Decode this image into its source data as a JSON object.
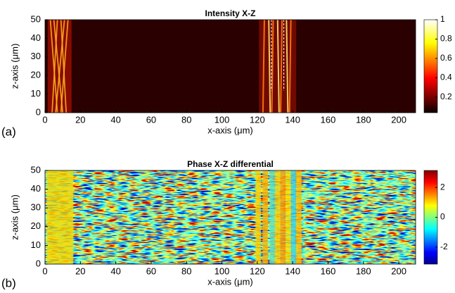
{
  "chart_data": [
    {
      "type": "heatmap",
      "label": "(a)",
      "title": "Intensity X-Z",
      "x_label": "x-axis (μm)",
      "y_label": "z-axis (μm)",
      "xlim": [
        0,
        209.5
      ],
      "ylim": [
        0,
        50
      ],
      "xticks": [
        0,
        20,
        40,
        60,
        80,
        100,
        120,
        140,
        160,
        180,
        200
      ],
      "yticks": [
        0,
        10,
        20,
        30,
        40,
        50
      ],
      "colorbar": {
        "colormap": "hot",
        "clim": [
          0.04,
          1
        ],
        "ticks": [
          1,
          0.8,
          0.6,
          0.4,
          0.2
        ]
      }
    },
    {
      "type": "heatmap",
      "label": "(b)",
      "title": "Phase X-Z differential",
      "x_label": "x-axis (μm)",
      "y_label": "z-axis (μm)",
      "xlim": [
        0,
        209.5
      ],
      "ylim": [
        0,
        50
      ],
      "xticks": [
        0,
        20,
        40,
        60,
        80,
        100,
        120,
        140,
        160,
        180,
        200
      ],
      "yticks": [
        0,
        10,
        20,
        30,
        40,
        50
      ],
      "colorbar": {
        "colormap": "jet",
        "clim": [
          -3.14,
          3.14
        ],
        "ticks": [
          2,
          0,
          -2
        ]
      }
    }
  ]
}
